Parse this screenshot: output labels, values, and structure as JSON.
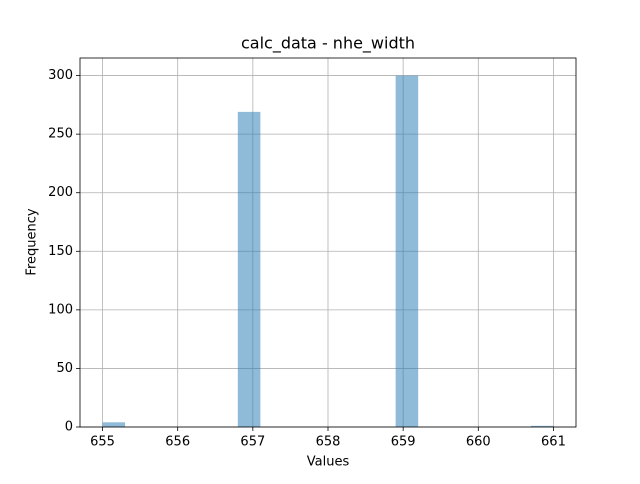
{
  "chart_data": {
    "type": "histogram",
    "title": "calc_data - nhe_width",
    "xlabel": "Values",
    "ylabel": "Frequency",
    "bins": [
      655,
      655.3,
      655.6,
      655.9,
      656.2,
      656.5,
      656.8,
      657.1,
      657.4,
      657.7,
      658,
      658.3,
      658.6,
      658.9,
      659.2,
      659.5,
      659.8,
      660.1,
      660.4,
      660.7,
      661
    ],
    "values": [
      4,
      0,
      0,
      0,
      0,
      0,
      269,
      0,
      0,
      0,
      0,
      0,
      0,
      300,
      0,
      0,
      0,
      0,
      0,
      1
    ],
    "color": "#1f77b4",
    "alpha": 0.5,
    "xlim": [
      654.7,
      661.3
    ],
    "xticks": [
      655,
      656,
      657,
      658,
      659,
      660,
      661
    ],
    "ylim": [
      0,
      315
    ],
    "yticks": [
      0,
      50,
      100,
      150,
      200,
      250,
      300
    ],
    "grid": true
  }
}
